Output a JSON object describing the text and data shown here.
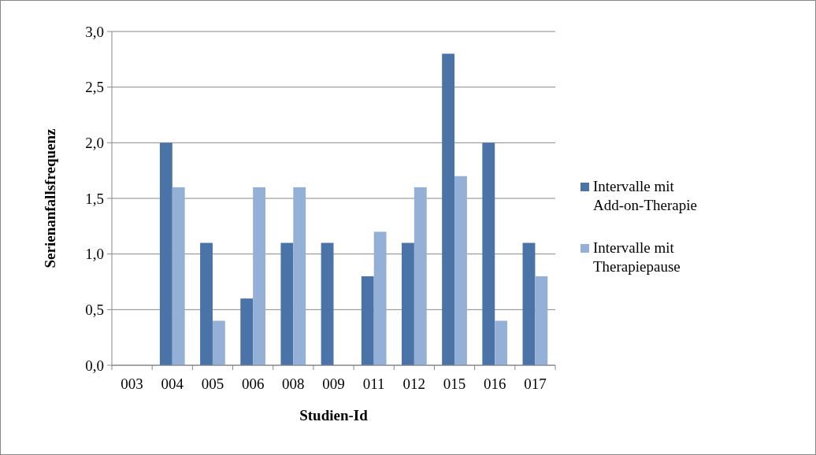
{
  "chart_data": {
    "type": "bar",
    "xlabel": "Studien-Id",
    "ylabel": "Serienanfallsfrequenz",
    "categories": [
      "003",
      "004",
      "005",
      "006",
      "008",
      "009",
      "011",
      "012",
      "015",
      "016",
      "017"
    ],
    "series": [
      {
        "name": "Intervalle mit Add-on-Therapie",
        "color": "#4a73a8",
        "values": [
          0,
          2.0,
          1.1,
          0.6,
          1.1,
          1.1,
          0.8,
          1.1,
          2.8,
          2.0,
          1.1
        ]
      },
      {
        "name": "Intervalle mit Therapiepause",
        "color": "#95b0d6",
        "values": [
          0,
          1.6,
          0.4,
          1.6,
          1.6,
          0,
          1.2,
          1.6,
          1.7,
          0.4,
          0.8
        ]
      }
    ],
    "ylim": [
      0,
      3
    ],
    "yticks": [
      {
        "value": 0,
        "label": "0,0"
      },
      {
        "value": 0.5,
        "label": "0,5"
      },
      {
        "value": 1,
        "label": "1,0"
      },
      {
        "value": 1.5,
        "label": "1,5"
      },
      {
        "value": 2,
        "label": "2,0"
      },
      {
        "value": 2.5,
        "label": "2,5"
      },
      {
        "value": 3,
        "label": "3,0"
      }
    ],
    "grid": "y",
    "legend": "right"
  }
}
